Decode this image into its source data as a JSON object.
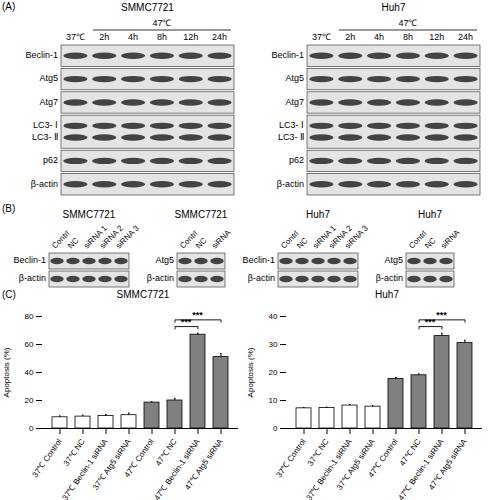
{
  "panel_labels": [
    "(A)",
    "(B)",
    "(C)"
  ],
  "blots_a": [
    {
      "cell": "SMMC7721",
      "control": "37℃",
      "treated": "47℃",
      "lanes": [
        "2h",
        "4h",
        "8h",
        "12h",
        "24h"
      ],
      "rows": [
        [
          "Beclin-1"
        ],
        [
          "Atg5"
        ],
        [
          "Atg7"
        ],
        [
          "LC3- Ⅰ",
          "LC3- Ⅱ"
        ],
        [
          "p62"
        ],
        [
          "β-actin"
        ]
      ]
    },
    {
      "cell": "Huh7",
      "control": "37℃",
      "treated": "47℃",
      "lanes": [
        "2h",
        "4h",
        "8h",
        "12h",
        "24h"
      ],
      "rows": [
        [
          "Beclin-1"
        ],
        [
          "Atg5"
        ],
        [
          "Atg7"
        ],
        [
          "LC3- Ⅰ",
          "LC3- Ⅱ"
        ],
        [
          "p62"
        ],
        [
          "β-actin"
        ]
      ]
    }
  ],
  "blots_b": [
    {
      "cell": "SMMC7721",
      "lanes": [
        "Contrl",
        "NC",
        "siRNA 1",
        "siRNA 2",
        "siRNA 3"
      ],
      "rows": [
        [
          "Beclin-1"
        ],
        [
          "β-actin"
        ]
      ]
    },
    {
      "cell": "SMMC7721",
      "lanes": [
        "Contrl",
        "NC",
        "siRNA"
      ],
      "rows": [
        [
          "Atg5"
        ],
        [
          "β-actin"
        ]
      ]
    },
    {
      "cell": "Huh7",
      "lanes": [
        "Contrl",
        "NC",
        "siRNA 1",
        "siRNA 2",
        "siRNA 3"
      ],
      "rows": [
        [
          "Beclin-1"
        ],
        [
          "β-actin"
        ]
      ]
    },
    {
      "cell": "Huh7",
      "lanes": [
        "Contrl",
        "NC",
        "siRNA"
      ],
      "rows": [
        [
          "Atg5"
        ],
        [
          "β-actin"
        ]
      ]
    }
  ],
  "chart_data": [
    {
      "type": "bar",
      "title": "SMMC7721",
      "ylabel": "Apoptosis (%)",
      "categories": [
        "37℃ Control",
        "37℃ NC",
        "37℃ Beclin-1 siRNA",
        "37℃ Atg5 siRNA",
        "47℃ Control",
        "47℃ NC",
        "47℃ Beclin-1 siRNA",
        "47℃ Atg5 siRNA"
      ],
      "values": [
        8,
        8.5,
        9,
        9.5,
        18.5,
        20,
        67,
        51
      ],
      "errors": [
        1,
        1,
        1,
        1.5,
        0.5,
        1.5,
        1,
        2.5
      ],
      "colors": [
        "#ffffff",
        "#ffffff",
        "#ffffff",
        "#ffffff",
        "#808080",
        "#808080",
        "#808080",
        "#808080"
      ],
      "ylim": [
        0,
        80
      ],
      "yticks": [
        0,
        20,
        40,
        60,
        80
      ],
      "significance": [
        {
          "from": "47℃ NC",
          "to": "47℃ Beclin-1 siRNA",
          "label": "***"
        },
        {
          "from": "47℃ NC",
          "to": "47℃ Atg5 siRNA",
          "label": "***"
        }
      ]
    },
    {
      "type": "bar",
      "title": "Huh7",
      "ylabel": "Apoptosis (%)",
      "categories": [
        "37℃ Control",
        "37℃ NC",
        "37℃ Beclin-1 siRNA",
        "37℃ Atg5 siRNA",
        "47℃ Control",
        "47℃ NC",
        "47℃ Beclin-1 siRNA",
        "47℃ Atg5 siRNA"
      ],
      "values": [
        7.2,
        7.3,
        8.2,
        7.8,
        17.7,
        19,
        33,
        30.5
      ],
      "errors": [
        0.3,
        0.3,
        0.3,
        0.3,
        0.5,
        0.5,
        1,
        1
      ],
      "colors": [
        "#ffffff",
        "#ffffff",
        "#ffffff",
        "#ffffff",
        "#808080",
        "#808080",
        "#808080",
        "#808080"
      ],
      "ylim": [
        0,
        40
      ],
      "yticks": [
        0,
        10,
        20,
        30,
        40
      ],
      "significance": [
        {
          "from": "47℃ NC",
          "to": "47℃ Beclin-1 siRNA",
          "label": "***"
        },
        {
          "from": "47℃ NC",
          "to": "47℃ Atg5 siRNA",
          "label": "***"
        }
      ]
    }
  ]
}
